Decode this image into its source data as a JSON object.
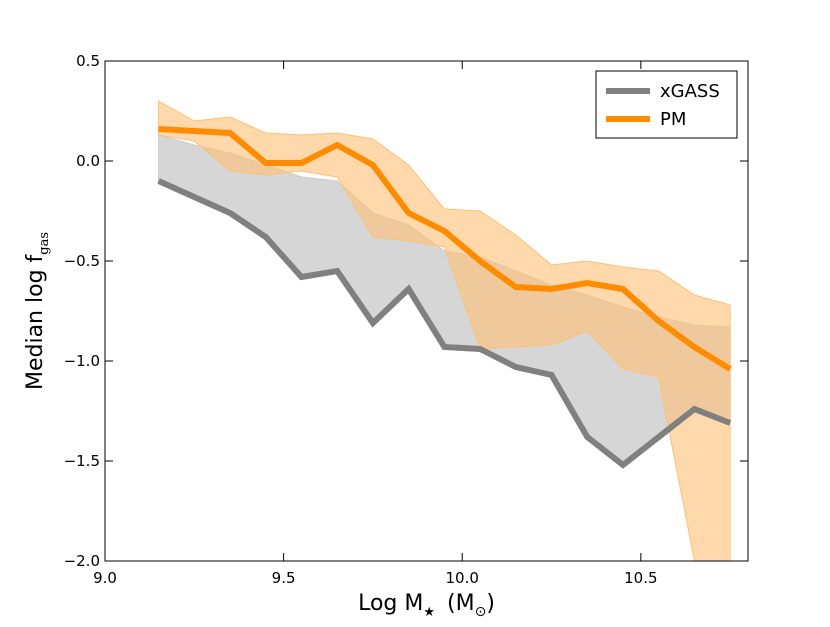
{
  "chart_data": {
    "type": "line",
    "title": "",
    "xlabel": "Log M★ (M⊙)",
    "xlabel_parts": {
      "main": "Log M",
      "sub": "★",
      "units_open": "(M",
      "units_sub": "⊙",
      "units_close": ")"
    },
    "ylabel": "Median log f_gas",
    "ylabel_parts": {
      "main": "Median log f",
      "sub": "gas"
    },
    "xlim": [
      9.0,
      10.8
    ],
    "ylim": [
      -2.0,
      0.5
    ],
    "xticks": [
      9.0,
      9.5,
      10.0,
      10.5
    ],
    "xtick_labels": [
      "9.0",
      "9.5",
      "10.0",
      "10.5"
    ],
    "yticks": [
      0.5,
      0.0,
      -0.5,
      -1.0,
      -1.5,
      -2.0
    ],
    "ytick_labels": [
      "0.5",
      "0.0",
      "−0.5",
      "−1.0",
      "−1.5",
      "−2.0"
    ],
    "grid": false,
    "legend_position": "top-right",
    "x": [
      9.15,
      9.25,
      9.35,
      9.45,
      9.55,
      9.65,
      9.75,
      9.85,
      9.95,
      10.05,
      10.15,
      10.25,
      10.35,
      10.45,
      10.55,
      10.65,
      10.75
    ],
    "series": [
      {
        "name": "xGASS",
        "color": "#808080",
        "band_color": "#cccccc",
        "values": [
          -0.1,
          -0.18,
          -0.26,
          -0.38,
          -0.58,
          -0.55,
          -0.81,
          -0.64,
          -0.93,
          -0.94,
          -1.03,
          -1.07,
          -1.38,
          -1.52,
          -1.38,
          -1.24,
          -1.31
        ],
        "band_lower": [
          -0.1,
          -0.18,
          -0.26,
          -0.38,
          -0.58,
          -0.55,
          -0.81,
          -0.64,
          -0.93,
          -0.94,
          -1.03,
          -1.07,
          -1.38,
          -1.52,
          -1.38,
          -1.24,
          -1.31
        ],
        "band_upper": [
          0.13,
          0.08,
          0.04,
          -0.02,
          -0.08,
          -0.1,
          -0.26,
          -0.32,
          -0.45,
          -0.48,
          -0.55,
          -0.62,
          -0.67,
          -0.73,
          -0.78,
          -0.82,
          -0.83
        ]
      },
      {
        "name": "PM",
        "color": "#ff8c00",
        "band_color": "#ffbf73",
        "values": [
          0.16,
          0.15,
          0.14,
          -0.01,
          -0.01,
          0.08,
          -0.02,
          -0.26,
          -0.35,
          -0.5,
          -0.63,
          -0.64,
          -0.61,
          -0.64,
          -0.8,
          -0.93,
          -1.04
        ],
        "band_lower": [
          0.13,
          0.1,
          -0.05,
          -0.07,
          -0.05,
          -0.08,
          -0.38,
          -0.4,
          -0.43,
          -0.94,
          -0.93,
          -0.92,
          -0.85,
          -1.04,
          -1.08,
          -2.0,
          -2.0
        ],
        "band_upper": [
          0.3,
          0.2,
          0.22,
          0.14,
          0.13,
          0.14,
          0.11,
          -0.02,
          -0.24,
          -0.25,
          -0.37,
          -0.52,
          -0.5,
          -0.53,
          -0.55,
          -0.67,
          -0.72
        ]
      }
    ]
  }
}
